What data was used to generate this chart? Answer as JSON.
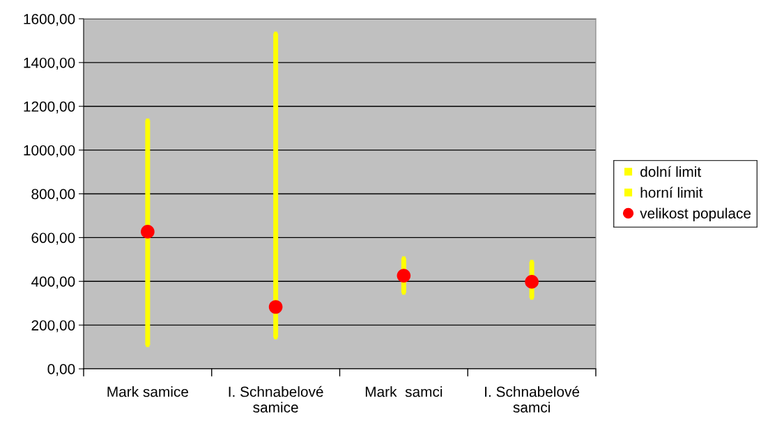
{
  "chart_data": {
    "type": "scatter",
    "categories": [
      "Mark samice",
      "I. Schnabelové\nsamice",
      "Mark  samci",
      "I. Schnabelové\nsamci"
    ],
    "series": [
      {
        "name": "dolní limit",
        "marker": "square",
        "color": "#ffff00",
        "values": [
          108,
          143,
          347,
          324
        ]
      },
      {
        "name": "horní limit",
        "marker": "square",
        "color": "#ffff00",
        "values": [
          1136,
          1533,
          506,
          490
        ]
      },
      {
        "name": "velikost populace",
        "marker": "circle",
        "color": "#ff0000",
        "values": [
          627,
          283,
          426,
          398
        ]
      }
    ],
    "ylim": [
      0,
      1600
    ],
    "yticks": [
      {
        "value": 0,
        "label": "0,00"
      },
      {
        "value": 200,
        "label": "200,00"
      },
      {
        "value": 400,
        "label": "400,00"
      },
      {
        "value": 600,
        "label": "600,00"
      },
      {
        "value": 800,
        "label": "800,00"
      },
      {
        "value": 1000,
        "label": "1000,00"
      },
      {
        "value": 1200,
        "label": "1200,00"
      },
      {
        "value": 1400,
        "label": "1400,00"
      },
      {
        "value": 1600,
        "label": "1600,00"
      }
    ],
    "grid": "y",
    "legend": "right"
  }
}
